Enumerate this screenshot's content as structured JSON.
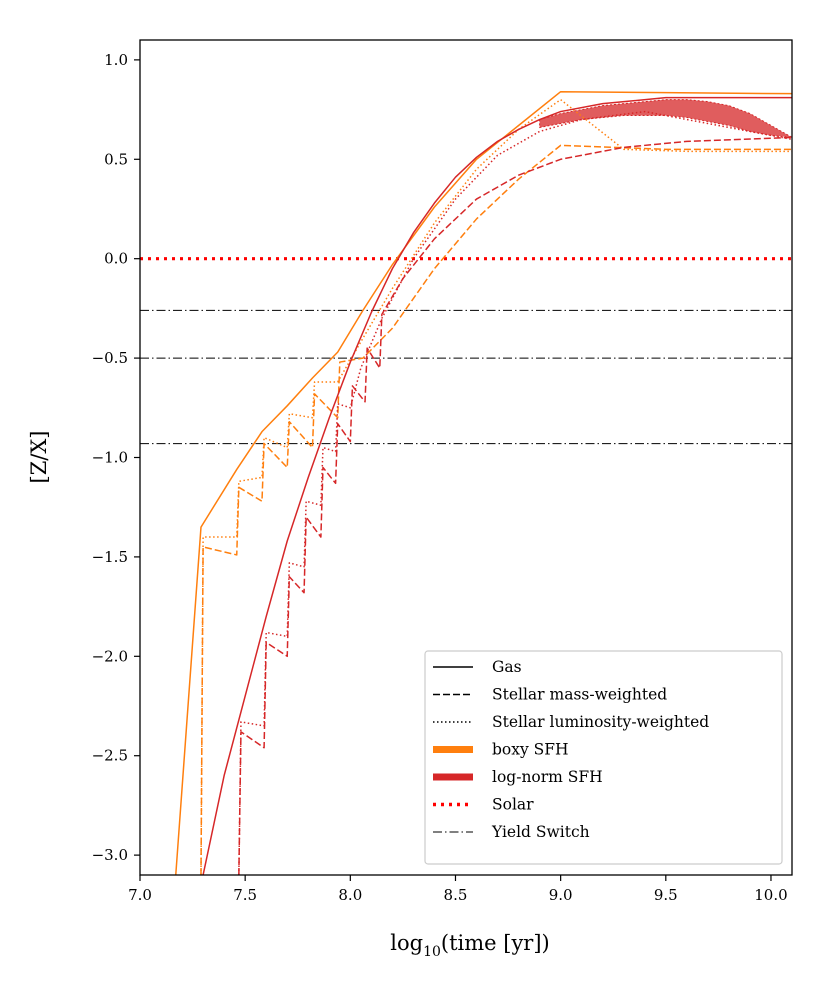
{
  "chart_data": {
    "type": "line",
    "title": "",
    "xlabel_base": "log",
    "xlabel_sub": "10",
    "xlabel_rest": "(time [yr])",
    "ylabel": "[Z/X]",
    "xlim": [
      7.0,
      10.1
    ],
    "ylim": [
      -3.1,
      1.1
    ],
    "xticks": [
      7.0,
      7.5,
      8.0,
      8.5,
      9.0,
      9.5,
      10.0
    ],
    "xtick_labels": [
      "7.0",
      "7.5",
      "8.0",
      "8.5",
      "9.0",
      "9.5",
      "10.0"
    ],
    "yticks": [
      -3.0,
      -2.5,
      -2.0,
      -1.5,
      -1.0,
      -0.5,
      0.0,
      0.5,
      1.0
    ],
    "ytick_labels": [
      "−3.0",
      "−2.5",
      "−2.0",
      "−1.5",
      "−1.0",
      "−0.5",
      "0.0",
      "0.5",
      "1.0"
    ],
    "grid": false,
    "legend_position": "lower-right",
    "colors": {
      "boxy": "#ff7f0e",
      "lognorm": "#d62728",
      "solar": "#ff0000",
      "yield": "#000000"
    },
    "legend": [
      {
        "label": "Gas",
        "color": "#000000",
        "style": "solid",
        "width": 1.5
      },
      {
        "label": "Stellar mass-weighted",
        "color": "#000000",
        "style": "dashed",
        "width": 1.5
      },
      {
        "label": "Stellar luminosity-weighted",
        "color": "#000000",
        "style": "dotted",
        "width": 1.5
      },
      {
        "label": "boxy SFH",
        "color": "#ff7f0e",
        "style": "solid",
        "width": 7
      },
      {
        "label": "log-norm SFH",
        "color": "#d62728",
        "style": "solid",
        "width": 7
      },
      {
        "label": "Solar",
        "color": "#ff0000",
        "style": "dotted-thick",
        "width": 3.5
      },
      {
        "label": "Yield Switch",
        "color": "#000000",
        "style": "dashdot",
        "width": 1
      }
    ],
    "hlines": [
      {
        "name": "Solar",
        "y": 0.0,
        "color": "#ff0000",
        "style": "dotted-thick"
      },
      {
        "name": "Yield Switch",
        "y": -0.26,
        "color": "#000000",
        "style": "dashdot"
      },
      {
        "name": "Yield Switch",
        "y": -0.5,
        "color": "#000000",
        "style": "dashdot"
      },
      {
        "name": "Yield Switch",
        "y": -0.93,
        "color": "#000000",
        "style": "dashdot"
      }
    ],
    "series": [
      {
        "name": "boxy SFH Gas",
        "color": "#ff7f0e",
        "style": "solid",
        "x": [
          7.17,
          7.29,
          7.46,
          7.58,
          7.7,
          7.82,
          7.94,
          8.06,
          8.2,
          8.4,
          8.6,
          8.8,
          9.0,
          9.5,
          10.1
        ],
        "y": [
          -3.1,
          -1.35,
          -1.06,
          -0.87,
          -0.74,
          -0.6,
          -0.47,
          -0.26,
          -0.03,
          0.26,
          0.5,
          0.67,
          0.84,
          0.835,
          0.83
        ]
      },
      {
        "name": "boxy SFH Stellar mass-weighted",
        "color": "#ff7f0e",
        "style": "dashed",
        "x": [
          7.29,
          7.3,
          7.46,
          7.47,
          7.58,
          7.59,
          7.7,
          7.71,
          7.82,
          7.83,
          7.94,
          7.95,
          8.06,
          8.2,
          8.4,
          8.6,
          8.8,
          9.0,
          9.5,
          10.1
        ],
        "y": [
          -3.1,
          -1.45,
          -1.49,
          -1.15,
          -1.22,
          -0.93,
          -1.05,
          -0.82,
          -0.95,
          -0.68,
          -0.8,
          -0.52,
          -0.5,
          -0.35,
          -0.05,
          0.2,
          0.4,
          0.57,
          0.55,
          0.55
        ]
      },
      {
        "name": "boxy SFH Stellar luminosity-weighted",
        "color": "#ff7f0e",
        "style": "dotted",
        "x": [
          7.29,
          7.3,
          7.46,
          7.47,
          7.58,
          7.59,
          7.7,
          7.71,
          7.82,
          7.83,
          7.94,
          8.06,
          8.2,
          8.4,
          8.6,
          8.8,
          9.0,
          9.3,
          9.6,
          10.1
        ],
        "y": [
          -3.1,
          -1.4,
          -1.4,
          -1.12,
          -1.1,
          -0.9,
          -0.95,
          -0.78,
          -0.8,
          -0.62,
          -0.62,
          -0.4,
          -0.15,
          0.18,
          0.45,
          0.65,
          0.8,
          0.55,
          0.54,
          0.54
        ]
      },
      {
        "name": "log-norm SFH Gas",
        "color": "#d62728",
        "style": "solid",
        "x": [
          7.3,
          7.4,
          7.5,
          7.6,
          7.7,
          7.8,
          7.9,
          8.0,
          8.1,
          8.2,
          8.3,
          8.4,
          8.5,
          8.6,
          8.7,
          8.8,
          8.9,
          9.0,
          9.2,
          9.5,
          9.8,
          10.1
        ],
        "y": [
          -3.1,
          -2.6,
          -2.2,
          -1.8,
          -1.42,
          -1.1,
          -0.8,
          -0.52,
          -0.27,
          -0.05,
          0.13,
          0.28,
          0.41,
          0.51,
          0.59,
          0.65,
          0.7,
          0.74,
          0.78,
          0.81,
          0.81,
          0.81
        ]
      },
      {
        "name": "log-norm SFH Stellar mass-weighted",
        "color": "#d62728",
        "style": "dashed",
        "x": [
          7.47,
          7.48,
          7.59,
          7.6,
          7.7,
          7.71,
          7.78,
          7.79,
          7.86,
          7.87,
          7.93,
          7.94,
          8.0,
          8.01,
          8.07,
          8.08,
          8.14,
          8.15,
          8.25,
          8.4,
          8.6,
          8.8,
          9.0,
          9.3,
          9.6,
          10.1
        ],
        "y": [
          -3.1,
          -2.38,
          -2.46,
          -1.93,
          -2.0,
          -1.6,
          -1.68,
          -1.3,
          -1.4,
          -1.05,
          -1.13,
          -0.83,
          -0.92,
          -0.64,
          -0.72,
          -0.45,
          -0.55,
          -0.28,
          -0.1,
          0.1,
          0.3,
          0.42,
          0.5,
          0.56,
          0.59,
          0.61
        ]
      },
      {
        "name": "log-norm SFH Stellar luminosity-weighted",
        "color": "#d62728",
        "style": "dotted",
        "x": [
          7.47,
          7.48,
          7.59,
          7.6,
          7.7,
          7.71,
          7.78,
          7.79,
          7.86,
          7.87,
          7.93,
          7.94,
          8.0,
          8.05,
          8.15,
          8.3,
          8.5,
          8.7,
          8.9,
          9.1,
          9.4,
          9.7,
          10.1
        ],
        "y": [
          -3.1,
          -2.33,
          -2.35,
          -1.88,
          -1.9,
          -1.53,
          -1.55,
          -1.22,
          -1.24,
          -0.95,
          -0.97,
          -0.73,
          -0.75,
          -0.55,
          -0.3,
          0.0,
          0.3,
          0.52,
          0.64,
          0.7,
          0.74,
          0.68,
          0.6
        ]
      }
    ],
    "band": {
      "name": "log-norm SFH luminosity oscillation",
      "color": "#d62728",
      "x": [
        8.9,
        9.0,
        9.1,
        9.2,
        9.3,
        9.4,
        9.5,
        9.6,
        9.7,
        9.8,
        9.9,
        10.0,
        10.1
      ],
      "upper": [
        0.7,
        0.73,
        0.75,
        0.77,
        0.78,
        0.79,
        0.8,
        0.8,
        0.79,
        0.77,
        0.73,
        0.67,
        0.61
      ],
      "lower": [
        0.66,
        0.68,
        0.7,
        0.71,
        0.72,
        0.72,
        0.72,
        0.71,
        0.69,
        0.67,
        0.64,
        0.62,
        0.61
      ]
    }
  }
}
